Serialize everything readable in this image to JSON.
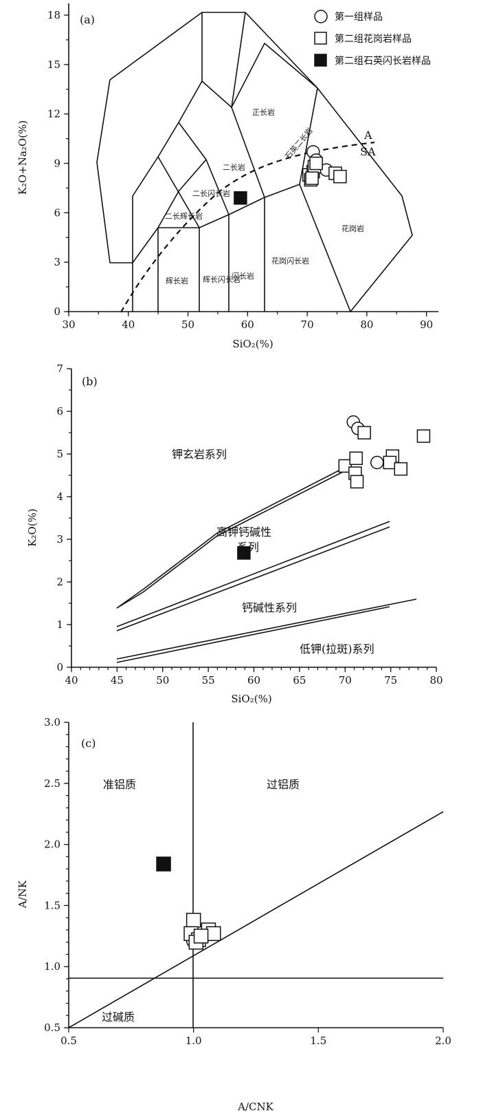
{
  "chart_data": [
    {
      "panel": "(a)",
      "type": "scatter",
      "xlabel": "SiO₂(%)",
      "ylabel": "K₂O+Na₂O(%)",
      "xlim": [
        30,
        92
      ],
      "ylim": [
        0,
        18.5
      ],
      "xticks": [
        30,
        40,
        50,
        60,
        70,
        80,
        90
      ],
      "yticks": [
        0,
        3,
        6,
        9,
        12,
        15,
        18
      ],
      "legend": [
        "第一组样品",
        "第二组花岗岩样品",
        "第二组石英闪长岩样品"
      ],
      "field_labels": [
        "正长岩",
        "石英二长岩",
        "二长岩",
        "二长闪长岩",
        "二长辉长岩",
        "辉长岩",
        "辉长闪长岩",
        "闪长岩",
        "花岗闪长岩",
        "花岗岩"
      ],
      "curve_labels": [
        "A",
        "SA"
      ],
      "series": [
        {
          "name": "第一组样品",
          "marker": "circle",
          "x": [
            71.0,
            71.5,
            73.2
          ],
          "y": [
            9.7,
            9.2,
            8.6
          ]
        },
        {
          "name": "第二组花岗岩样品",
          "marker": "square",
          "x": [
            70.3,
            71.0,
            70.6,
            71.2,
            71.5,
            74.7,
            75.5,
            70.8
          ],
          "y": [
            8.3,
            8.5,
            8.0,
            8.8,
            9.0,
            8.4,
            8.2,
            8.1
          ]
        },
        {
          "name": "第二组石英闪长岩样品",
          "marker": "filled-square",
          "x": [
            58.8
          ],
          "y": [
            6.9
          ]
        }
      ]
    },
    {
      "panel": "(b)",
      "type": "scatter",
      "xlabel": "SiO₂(%)",
      "ylabel": "K₂O(%)",
      "xlim": [
        40,
        80
      ],
      "ylim": [
        0,
        7
      ],
      "xticks": [
        40,
        45,
        50,
        55,
        60,
        65,
        70,
        75,
        80
      ],
      "yticks": [
        0,
        1,
        2,
        3,
        4,
        5,
        6,
        7
      ],
      "field_labels": [
        "钾玄岩系列",
        "高钾钙碱性",
        "系列",
        "钙碱性系列",
        "低钾(拉斑)系列"
      ],
      "series": [
        {
          "name": "第一组样品",
          "marker": "circle",
          "x": [
            70.9,
            71.4,
            73.5
          ],
          "y": [
            5.75,
            5.6,
            4.8
          ]
        },
        {
          "name": "第二组花岗岩样品",
          "marker": "square",
          "x": [
            72.1,
            78.6,
            75.2,
            74.9,
            76.1,
            70.0,
            71.2,
            71.1,
            71.3
          ],
          "y": [
            5.5,
            5.42,
            4.95,
            4.8,
            4.65,
            4.72,
            4.9,
            4.55,
            4.35
          ]
        },
        {
          "name": "第二组石英闪长岩样品",
          "marker": "filled-square",
          "x": [
            58.9
          ],
          "y": [
            2.68
          ]
        }
      ]
    },
    {
      "panel": "(c)",
      "type": "scatter",
      "xlabel": "A/CNK",
      "ylabel": "A/NK",
      "xlim": [
        0.5,
        2.0
      ],
      "ylim": [
        0.5,
        3.0
      ],
      "xticks": [
        "0.5",
        "1.0",
        "1.5",
        "2.0"
      ],
      "yticks": [
        "0.5",
        "1.0",
        "1.5",
        "2.0",
        "2.5",
        "3.0"
      ],
      "field_labels": [
        "准铝质",
        "过铝质",
        "过碱质"
      ],
      "series": [
        {
          "name": "第一组样品",
          "marker": "circle",
          "x": [
            1.02,
            1.04,
            1.0
          ],
          "y": [
            1.28,
            1.25,
            1.21
          ]
        },
        {
          "name": "第二组花岗岩样品",
          "marker": "square",
          "x": [
            1.0,
            0.99,
            1.06,
            1.08,
            1.02,
            1.01,
            1.03
          ],
          "y": [
            1.38,
            1.27,
            1.3,
            1.27,
            1.22,
            1.2,
            1.25
          ]
        },
        {
          "name": "第二组石英闪长岩样品",
          "marker": "filled-square",
          "x": [
            0.88
          ],
          "y": [
            1.84
          ]
        }
      ]
    }
  ]
}
